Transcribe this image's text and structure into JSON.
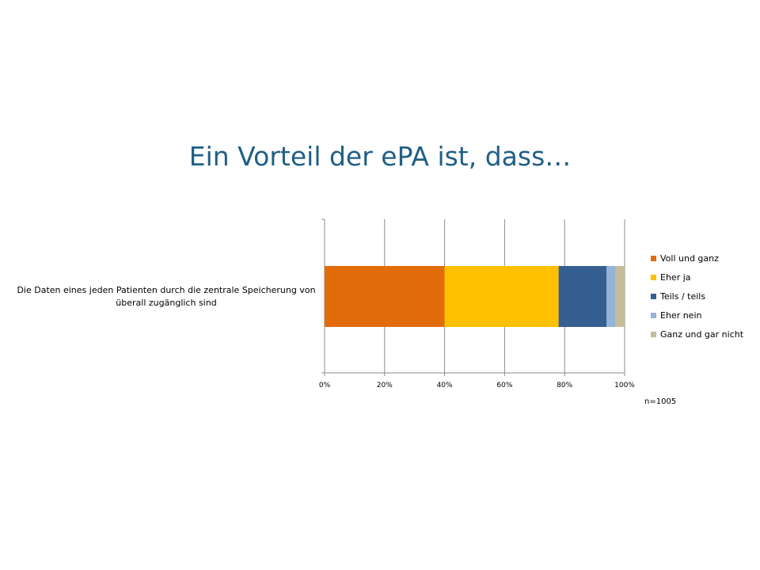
{
  "slide": {
    "title": "Ein Vorteil der ePA ist, dass…",
    "sample_size": "n=1005"
  },
  "chart_data": {
    "type": "bar",
    "orientation": "horizontal",
    "stacked": "100%",
    "categories": [
      "Die Daten eines jeden Patienten durch die zentrale Speicherung von überall zugänglich sind"
    ],
    "series": [
      {
        "name": "Voll und ganz",
        "color": "#e36c0a",
        "values": [
          40
        ]
      },
      {
        "name": "Eher ja",
        "color": "#ffc000",
        "values": [
          38
        ]
      },
      {
        "name": "Teils / teils",
        "color": "#365f91",
        "values": [
          16
        ]
      },
      {
        "name": "Eher nein",
        "color": "#95b3d7",
        "values": [
          3
        ]
      },
      {
        "name": "Ganz und gar nicht",
        "color": "#c4bd97",
        "values": [
          3
        ]
      }
    ],
    "xlim": [
      0,
      100
    ],
    "x_ticks": [
      "0%",
      "20%",
      "40%",
      "60%",
      "80%",
      "100%"
    ],
    "grid": true,
    "legend_position": "right"
  }
}
